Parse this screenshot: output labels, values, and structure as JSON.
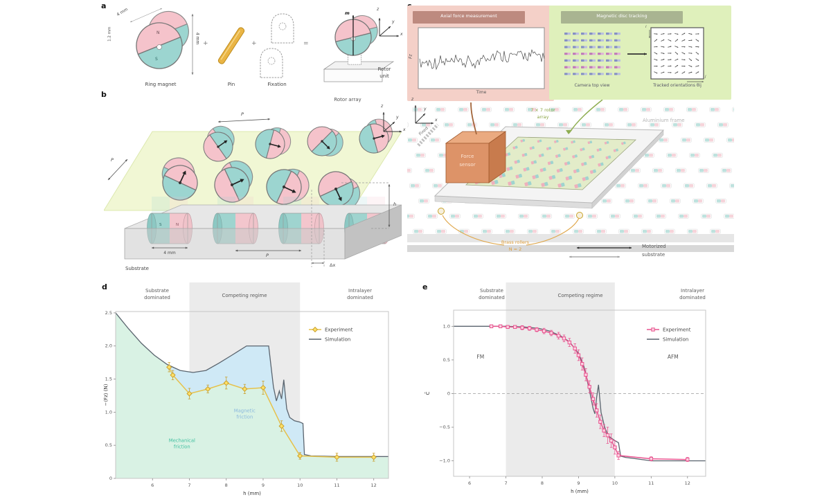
{
  "colors": {
    "magnet_pink": "#f5c3cb",
    "magnet_teal": "#9cd5d0",
    "experiment_yellow": "#e6c14a",
    "experiment_pink": "#e8538f",
    "simulation_gray": "#5a646e",
    "mechanical_green": "#d9f2e4",
    "magnetic_blue": "#cfe9f6",
    "force_box_pink": "#f4d0c8",
    "tracking_box_green": "#dff0bb",
    "sensor_orange": "#dd9368"
  },
  "panel_labels": {
    "a": "a",
    "b": "b",
    "c": "c",
    "d": "d",
    "e": "e"
  },
  "a": {
    "caption_ring_magnet": "Ring magnet",
    "caption_pin": "Pin",
    "caption_fixation": "Fixation",
    "caption_rotor_unit_1": "Rotor",
    "caption_rotor_unit_2": "unit",
    "dim_outer": "4 mm",
    "dim_bore": "1.2 mm",
    "dim_height": "4 mm",
    "pole_n": "N",
    "pole_s": "S",
    "moment": "m",
    "op_plus_1": "+",
    "op_plus_2": "+",
    "op_equals": "=",
    "axis_z": "z",
    "axis_y": "y",
    "axis_x": "x"
  },
  "b": {
    "rotor_array": "Rotor array",
    "substrate": "Substrate",
    "pitch_top": "P",
    "pitch_left": "P",
    "pitch_bottom": "P",
    "dim_magnet": "4 mm",
    "gap": "h",
    "offset": "Δx",
    "pole_n": "N",
    "pole_s": "S",
    "axis_z": "z",
    "axis_y": "y",
    "axis_x": "x"
  },
  "c": {
    "force_box_title": "Axial force measurement",
    "force_ylabel": "Fz",
    "force_xlabel": "Time",
    "track_box_title": "Magnetic disc tracking",
    "camera_label": "Camera top view",
    "tracked_label": "Tracked orientations θij",
    "index_i": "i",
    "index_j": "j",
    "array_label_1": "7 × 7 rotor",
    "array_label_2": "array",
    "frame_label": "Aluminium frame",
    "sensor_label_1": "Force",
    "sensor_label_2": "sensor",
    "fixed_label": "Fixed",
    "roller_label_1": "Brass rollers",
    "roller_label_2": "N = 2",
    "motor_label_1": "Motorized",
    "motor_label_2": "substrate",
    "axis_z": "z",
    "axis_y": "y",
    "axis_x": "x"
  },
  "chart_data": [
    {
      "id": "chart-d",
      "type": "line",
      "xlabel": "h (mm)",
      "ylabel": "−⟨Fz⟩ (N)",
      "xlim": [
        5.0,
        12.4
      ],
      "ylim": [
        0,
        2.52
      ],
      "xticks": [
        6,
        7,
        8,
        9,
        10,
        11,
        12
      ],
      "yticks": [
        0,
        0.5,
        1.0,
        1.5,
        2.0,
        2.5
      ],
      "band": {
        "x0": 7,
        "x1": 10
      },
      "headers": {
        "left": [
          "Substrate",
          "dominated"
        ],
        "mid": [
          "Competing regime"
        ],
        "right": [
          "Intralayer",
          "dominated"
        ]
      },
      "series": [
        {
          "name": "Experiment",
          "color": "#e6c14a",
          "marker": "diamond",
          "marker_fill": "#ffe066",
          "marker_stroke": "#c9a02e",
          "x": [
            6.45,
            6.55,
            7.0,
            7.5,
            8.0,
            8.5,
            9.0,
            9.5,
            10.0,
            11.0,
            12.0
          ],
          "y": [
            1.68,
            1.56,
            1.28,
            1.35,
            1.44,
            1.35,
            1.37,
            0.79,
            0.34,
            0.32,
            0.32
          ],
          "err": [
            0.07,
            0.07,
            0.08,
            0.06,
            0.09,
            0.07,
            0.1,
            0.08,
            0.05,
            0.06,
            0.06
          ]
        },
        {
          "name": "Simulation",
          "color": "#5a646e",
          "x": [
            5.0,
            5.35,
            5.7,
            6.05,
            6.4,
            6.75,
            7.1,
            7.45,
            7.8,
            8.15,
            8.55,
            9.15,
            9.28,
            9.36,
            9.44,
            9.5,
            9.56,
            9.64,
            9.72,
            9.85,
            10.0,
            10.08,
            10.12,
            10.3,
            11.0,
            12.0,
            12.4
          ],
          "y": [
            2.5,
            2.26,
            2.04,
            1.86,
            1.72,
            1.63,
            1.6,
            1.63,
            1.74,
            1.86,
            2.0,
            2.0,
            1.38,
            1.17,
            1.32,
            1.2,
            1.49,
            1.05,
            0.92,
            0.87,
            0.85,
            0.83,
            0.36,
            0.34,
            0.33,
            0.33,
            0.33
          ]
        }
      ],
      "areas": [
        {
          "label": [
            "Mechanical",
            "friction"
          ],
          "color": "#d9f2e4",
          "text_color": "#3fbf9f",
          "label_x": 6.8,
          "label_y": 0.55
        },
        {
          "label": [
            "Magnetic",
            "friction"
          ],
          "color": "#cfe9f6",
          "text_color": "#8ab8dd",
          "label_x": 8.5,
          "label_y": 1.0
        }
      ]
    },
    {
      "id": "chart-e",
      "type": "line",
      "xlabel": "h (mm)",
      "ylabel": "C̄",
      "xlim": [
        5.56,
        12.5
      ],
      "ylim": [
        -1.23,
        1.24
      ],
      "xticks": [
        6,
        7,
        8,
        9,
        10,
        11,
        12
      ],
      "yticks": [
        -1.0,
        -0.5,
        0,
        0.5,
        1.0
      ],
      "zero_line": true,
      "band": {
        "x0": 7,
        "x1": 10
      },
      "headers": {
        "left": [
          "Substrate",
          "dominated"
        ],
        "mid": [
          "Competing regime"
        ],
        "right": [
          "Intralayer",
          "dominated"
        ]
      },
      "annotations": [
        {
          "text": "FM",
          "x": 6.3,
          "y": 0.52
        },
        {
          "text": "AFM",
          "x": 11.6,
          "y": 0.52
        }
      ],
      "series": [
        {
          "name": "Experiment",
          "color": "#e8538f",
          "marker": "square",
          "marker_fill": "#fbd3e1",
          "marker_stroke": "#e8538f",
          "x": [
            6.6,
            6.85,
            7.05,
            7.25,
            7.45,
            7.65,
            7.85,
            8.05,
            8.25,
            8.45,
            8.6,
            8.75,
            8.9,
            9.0,
            9.1,
            9.2,
            9.3,
            9.4,
            9.5,
            9.6,
            9.7,
            9.8,
            9.9,
            10.0,
            10.1,
            11.0,
            12.0
          ],
          "y": [
            1.0,
            1.0,
            0.99,
            0.99,
            0.98,
            0.97,
            0.95,
            0.93,
            0.9,
            0.86,
            0.82,
            0.76,
            0.67,
            0.57,
            0.44,
            0.28,
            0.1,
            -0.08,
            -0.25,
            -0.42,
            -0.55,
            -0.62,
            -0.7,
            -0.8,
            -0.92,
            -0.97,
            -0.98
          ],
          "err": [
            0.02,
            0.02,
            0.02,
            0.02,
            0.03,
            0.03,
            0.03,
            0.04,
            0.04,
            0.05,
            0.05,
            0.06,
            0.07,
            0.08,
            0.09,
            0.09,
            0.09,
            0.09,
            0.1,
            0.1,
            0.09,
            0.12,
            0.1,
            0.1,
            0.06,
            0.03,
            0.03
          ]
        },
        {
          "name": "Simulation",
          "color": "#5a646e",
          "x": [
            5.56,
            7.0,
            7.5,
            7.9,
            8.2,
            8.5,
            8.75,
            9.0,
            9.15,
            9.3,
            9.4,
            9.45,
            9.5,
            9.55,
            9.62,
            9.72,
            9.82,
            10.0,
            10.1,
            10.16,
            10.3,
            10.6,
            11.0,
            12.0,
            12.5
          ],
          "y": [
            1.0,
            1.0,
            0.99,
            0.97,
            0.93,
            0.86,
            0.77,
            0.6,
            0.4,
            0.05,
            -0.22,
            -0.3,
            -0.05,
            0.13,
            -0.28,
            -0.5,
            -0.63,
            -0.7,
            -0.73,
            -0.93,
            -0.95,
            -0.97,
            -1.0,
            -1.0,
            -1.0
          ]
        }
      ]
    }
  ]
}
